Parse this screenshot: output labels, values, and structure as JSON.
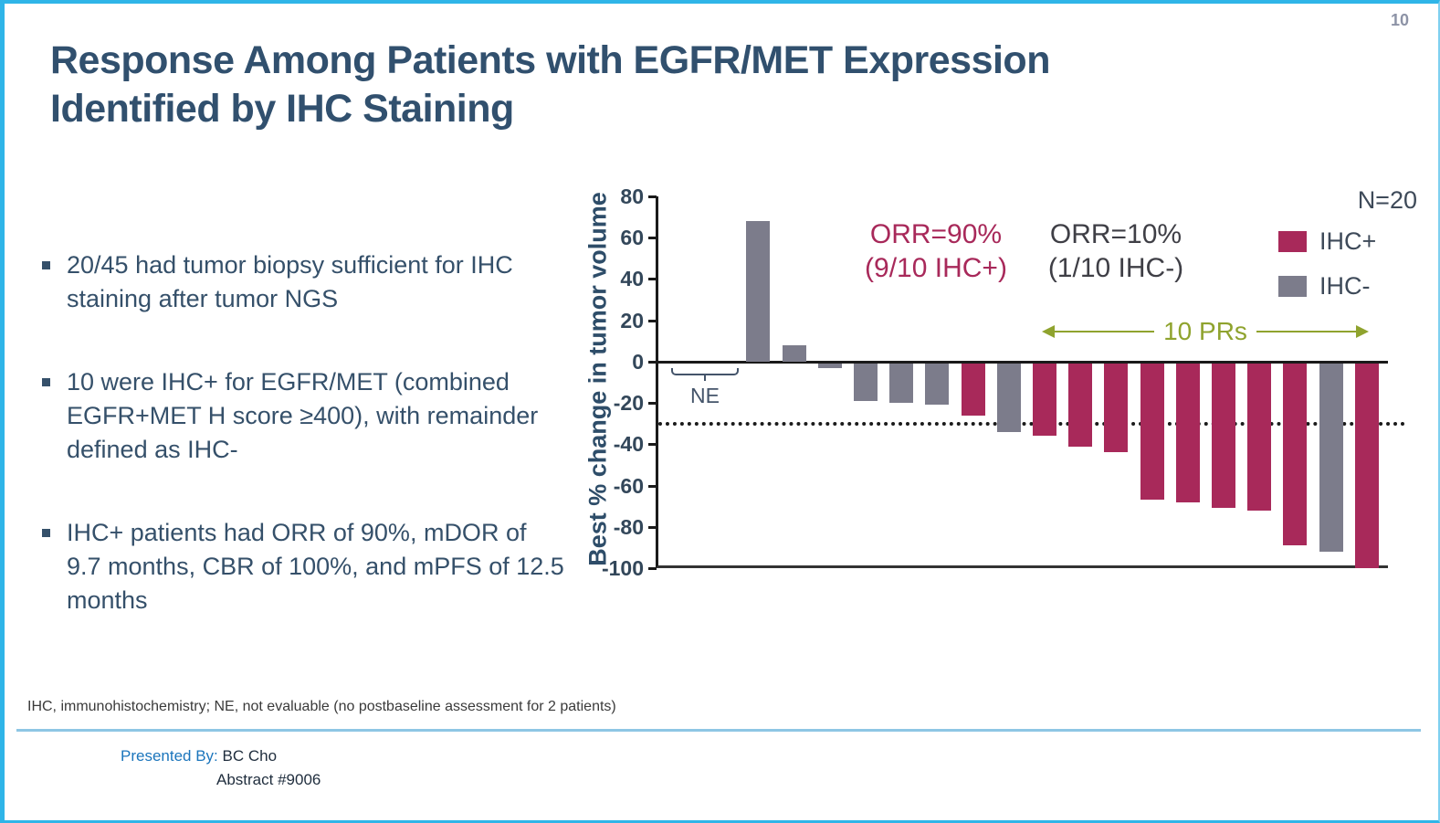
{
  "page": {
    "number": "10"
  },
  "title": {
    "line1": "Response Among Patients with EGFR/MET Expression",
    "line2": "Identified by IHC Staining"
  },
  "bullets": [
    "20/45 had tumor biopsy sufficient for IHC staining after tumor NGS",
    "10 were IHC+ for EGFR/MET (combined EGFR+MET H score ≥400), with remainder defined as IHC-",
    "IHC+ patients had ORR of 90%, mDOR of 9.7 months, CBR of 100%, and mPFS of 12.5 months"
  ],
  "chart_data": {
    "type": "bar",
    "subtype": "waterfall",
    "ylabel": "Best % change in tumor volume",
    "ylim": [
      -100,
      80
    ],
    "yticks": [
      80,
      60,
      40,
      20,
      0,
      -20,
      -40,
      -60,
      -80,
      -100
    ],
    "reference_line": -30,
    "ne_slots": 2,
    "ne_label": "NE",
    "n_label": "N=20",
    "legend": [
      {
        "label": "IHC+",
        "color": "#a8295a"
      },
      {
        "label": "IHC-",
        "color": "#7c7c8b"
      }
    ],
    "annotations": {
      "positive": {
        "line1": "ORR=90%",
        "line2": "(9/10 IHC+)",
        "color": "#a8295a"
      },
      "negative": {
        "line1": "ORR=10%",
        "line2": "(1/10 IHC-)",
        "color": "#3f3f46"
      },
      "pr_arrow": {
        "label": "10 PRs",
        "color": "#8fa32e"
      }
    },
    "bars": [
      {
        "value": 68,
        "group": "IHC-"
      },
      {
        "value": 8,
        "group": "IHC-"
      },
      {
        "value": -3,
        "group": "IHC-"
      },
      {
        "value": -19,
        "group": "IHC-"
      },
      {
        "value": -20,
        "group": "IHC-"
      },
      {
        "value": -21,
        "group": "IHC-"
      },
      {
        "value": -26,
        "group": "IHC+"
      },
      {
        "value": -34,
        "group": "IHC-"
      },
      {
        "value": -36,
        "group": "IHC+"
      },
      {
        "value": -41,
        "group": "IHC+"
      },
      {
        "value": -44,
        "group": "IHC+"
      },
      {
        "value": -67,
        "group": "IHC+"
      },
      {
        "value": -68,
        "group": "IHC+"
      },
      {
        "value": -71,
        "group": "IHC+"
      },
      {
        "value": -72,
        "group": "IHC+"
      },
      {
        "value": -89,
        "group": "IHC+"
      },
      {
        "value": -92,
        "group": "IHC-"
      },
      {
        "value": -100,
        "group": "IHC+"
      }
    ]
  },
  "footnote": "IHC, immunohistochemistry;  NE, not evaluable  (no postbaseline assessment  for 2 patients)",
  "footer": {
    "presented_by_label": "Presented By:",
    "presenter": "BC Cho",
    "abstract": "Abstract #9006"
  }
}
